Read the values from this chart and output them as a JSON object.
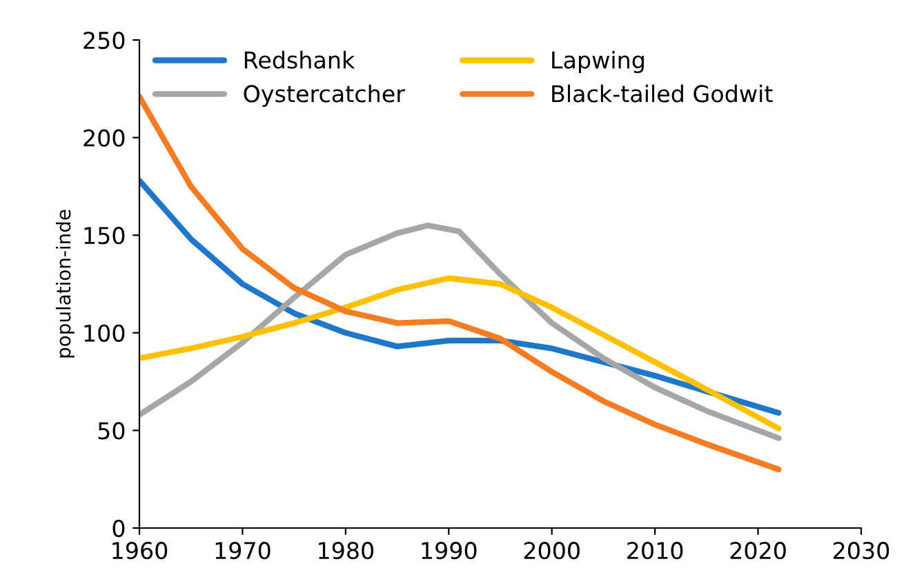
{
  "chart_data": {
    "type": "line",
    "ylabel": "population-inde",
    "xlim": [
      1960,
      2030
    ],
    "xticks": [
      1960,
      1970,
      1980,
      1990,
      2000,
      2010,
      2020,
      2030
    ],
    "ylim": [
      0,
      250
    ],
    "yticks": [
      0,
      50,
      100,
      150,
      200,
      250
    ],
    "grid": false,
    "legend": "top",
    "marker": "none",
    "line_style": "solid",
    "series": [
      {
        "name": "Redshank",
        "color": "#1f77c9",
        "x": [
          1960,
          1965,
          1970,
          1975,
          1980,
          1985,
          1990,
          1995,
          2000,
          2005,
          2010,
          2015,
          2022
        ],
        "values": [
          178,
          148,
          125,
          110,
          100,
          93,
          96,
          96,
          92,
          85,
          78,
          70,
          59
        ]
      },
      {
        "name": "Oystercatcher",
        "color": "#a6a6a6",
        "x": [
          1960,
          1965,
          1970,
          1975,
          1980,
          1985,
          1988,
          1991,
          1995,
          2000,
          2005,
          2010,
          2015,
          2022
        ],
        "values": [
          58,
          75,
          95,
          118,
          140,
          151,
          155,
          152,
          130,
          105,
          87,
          72,
          60,
          46
        ]
      },
      {
        "name": "Lapwing",
        "color": "#ffc000",
        "x": [
          1960,
          1965,
          1970,
          1975,
          1980,
          1985,
          1990,
          1995,
          2000,
          2005,
          2010,
          2015,
          2022
        ],
        "values": [
          87,
          92,
          98,
          105,
          113,
          122,
          128,
          125,
          113,
          99,
          85,
          71,
          51
        ]
      },
      {
        "name": "Black-tailed Godwit",
        "color": "#f57c22",
        "x": [
          1960,
          1965,
          1970,
          1975,
          1980,
          1985,
          1990,
          1995,
          2000,
          2005,
          2010,
          2015,
          2022
        ],
        "values": [
          221,
          175,
          143,
          123,
          111,
          105,
          106,
          97,
          80,
          65,
          53,
          43,
          30
        ]
      }
    ]
  }
}
